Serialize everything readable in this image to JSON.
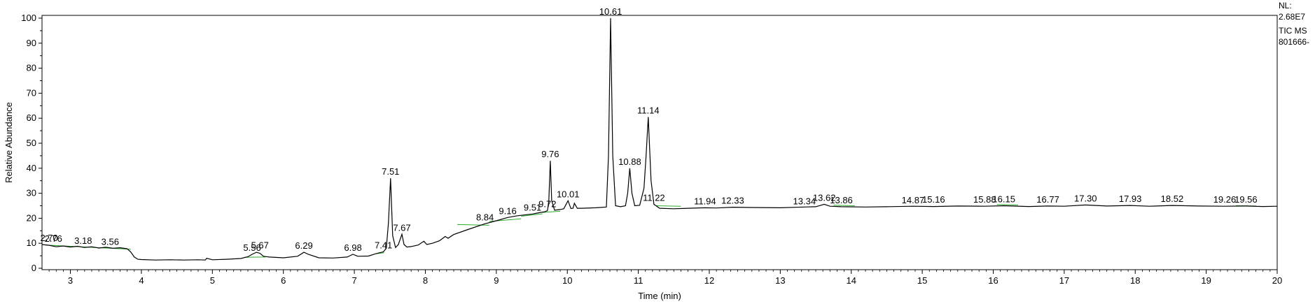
{
  "info": {
    "nl_label": "NL:",
    "nl_value": "2.68E7",
    "scan_type": "TIC  MS",
    "sample": "801666-"
  },
  "chart_data": {
    "type": "line",
    "title": "",
    "xlabel": "Time (min)",
    "ylabel": "Relative Abundance",
    "xlim": [
      2.6,
      20
    ],
    "ylim": [
      0,
      100
    ],
    "xticks": [
      3,
      4,
      5,
      6,
      7,
      8,
      9,
      10,
      11,
      12,
      13,
      14,
      15,
      16,
      17,
      18,
      19,
      20
    ],
    "yticks": [
      0,
      10,
      20,
      30,
      40,
      50,
      60,
      70,
      80,
      90,
      100
    ],
    "grid": false,
    "legend": "none",
    "colors": {
      "trace": "#000000",
      "baseline": "#2eaa2e",
      "plot_bg": "#ffffff"
    },
    "series": [
      {
        "x": [
          2.6,
          2.7,
          2.8,
          2.9,
          3.0,
          3.1,
          3.2,
          3.3,
          3.4,
          3.5,
          3.6,
          3.7,
          3.8,
          3.85,
          3.9,
          3.95,
          4.0,
          4.2,
          4.4,
          4.6,
          4.8,
          4.9,
          4.92,
          5.0,
          5.2,
          5.4,
          5.5,
          5.56,
          5.62,
          5.67,
          5.72,
          5.8,
          6.0,
          6.2,
          6.29,
          6.35,
          6.5,
          6.7,
          6.9,
          6.98,
          7.05,
          7.2,
          7.3,
          7.41,
          7.45,
          7.48,
          7.51,
          7.54,
          7.58,
          7.62,
          7.67,
          7.7,
          7.74,
          7.8,
          7.9,
          7.98,
          8.02,
          8.1,
          8.2,
          8.28,
          8.32,
          8.4,
          8.6,
          8.84,
          9.0,
          9.16,
          9.3,
          9.51,
          9.6,
          9.68,
          9.72,
          9.74,
          9.76,
          9.78,
          9.82,
          9.9,
          9.95,
          10.01,
          10.05,
          10.08,
          10.1,
          10.14,
          10.2,
          10.4,
          10.55,
          10.58,
          10.61,
          10.64,
          10.68,
          10.75,
          10.82,
          10.85,
          10.88,
          10.91,
          10.95,
          11.02,
          11.08,
          11.11,
          11.14,
          11.18,
          11.22,
          11.3,
          11.5,
          11.7,
          11.94,
          12.1,
          12.33,
          12.6,
          13.0,
          13.34,
          13.5,
          13.62,
          13.7,
          13.86,
          14.2,
          14.5,
          14.87,
          15.16,
          15.5,
          15.88,
          16.15,
          16.5,
          16.77,
          17.0,
          17.3,
          17.6,
          17.93,
          18.2,
          18.52,
          18.9,
          19.26,
          19.56,
          19.8,
          20.0
        ],
        "y": [
          9.5,
          9.2,
          8.6,
          8.9,
          8.5,
          8.8,
          8.3,
          8.6,
          8.1,
          8.4,
          8.0,
          8.2,
          7.8,
          6.5,
          4.5,
          3.6,
          3.5,
          3.3,
          3.4,
          3.3,
          3.4,
          3.3,
          4.0,
          3.4,
          3.6,
          3.9,
          4.6,
          5.6,
          6.4,
          6.0,
          4.8,
          4.5,
          4.2,
          4.8,
          6.4,
          5.6,
          4.2,
          4.1,
          4.5,
          5.6,
          4.8,
          4.9,
          5.8,
          6.6,
          8.0,
          18.0,
          36.0,
          13.0,
          8.3,
          9.5,
          13.6,
          9.5,
          8.5,
          8.7,
          9.3,
          10.8,
          9.5,
          10.0,
          11.0,
          12.7,
          12.0,
          13.5,
          15.5,
          17.8,
          19.0,
          20.3,
          21.0,
          21.7,
          22.2,
          22.6,
          23.0,
          27.0,
          43.0,
          27.0,
          23.2,
          23.5,
          23.8,
          27.0,
          23.9,
          24.0,
          26.0,
          24.0,
          24.0,
          24.2,
          24.5,
          45.0,
          100.0,
          45.0,
          25.0,
          24.6,
          25.0,
          30.0,
          40.0,
          30.0,
          25.0,
          25.2,
          32.0,
          45.0,
          60.5,
          35.0,
          25.6,
          24.0,
          23.8,
          24.0,
          24.2,
          24.1,
          24.4,
          24.3,
          24.2,
          24.5,
          24.6,
          25.6,
          24.8,
          24.6,
          24.5,
          24.6,
          24.8,
          24.7,
          24.9,
          24.8,
          25.0,
          24.7,
          24.9,
          24.8,
          25.3,
          24.9,
          25.1,
          24.8,
          25.1,
          24.9,
          24.8,
          24.9,
          24.7,
          24.8
        ]
      }
    ],
    "peak_labels": [
      {
        "label": "2.70",
        "x": 2.7,
        "y": 9.5
      },
      {
        "label": "2.76",
        "x": 2.76,
        "y": 9.2
      },
      {
        "label": "3.18",
        "x": 3.18,
        "y": 8.4
      },
      {
        "label": "3.56",
        "x": 3.56,
        "y": 8.0
      },
      {
        "label": "5.56",
        "x": 5.56,
        "y": 5.6
      },
      {
        "label": "5.67",
        "x": 5.67,
        "y": 6.6
      },
      {
        "label": "6.29",
        "x": 6.29,
        "y": 6.4
      },
      {
        "label": "6.98",
        "x": 6.98,
        "y": 5.6
      },
      {
        "label": "7.41",
        "x": 7.41,
        "y": 6.6
      },
      {
        "label": "7.51",
        "x": 7.51,
        "y": 36.0
      },
      {
        "label": "7.67",
        "x": 7.67,
        "y": 13.6
      },
      {
        "label": "8.84",
        "x": 8.84,
        "y": 17.8
      },
      {
        "label": "9.16",
        "x": 9.16,
        "y": 20.3
      },
      {
        "label": "9.51",
        "x": 9.51,
        "y": 21.7
      },
      {
        "label": "9.72",
        "x": 9.72,
        "y": 23.0
      },
      {
        "label": "9.76",
        "x": 9.76,
        "y": 43.0
      },
      {
        "label": "10.01",
        "x": 10.01,
        "y": 27.0
      },
      {
        "label": "10.61",
        "x": 10.61,
        "y": 100.0
      },
      {
        "label": "10.88",
        "x": 10.88,
        "y": 40.0
      },
      {
        "label": "11.14",
        "x": 11.14,
        "y": 60.5
      },
      {
        "label": "11.22",
        "x": 11.22,
        "y": 25.6
      },
      {
        "label": "11.94",
        "x": 11.94,
        "y": 24.2
      },
      {
        "label": "12.33",
        "x": 12.33,
        "y": 24.4
      },
      {
        "label": "13.34",
        "x": 13.34,
        "y": 24.2
      },
      {
        "label": "13.62",
        "x": 13.62,
        "y": 25.6
      },
      {
        "label": "13.86",
        "x": 13.86,
        "y": 24.6
      },
      {
        "label": "14.87",
        "x": 14.87,
        "y": 24.6
      },
      {
        "label": "15.16",
        "x": 15.16,
        "y": 24.8
      },
      {
        "label": "15.88",
        "x": 15.88,
        "y": 24.9
      },
      {
        "label": "16.15",
        "x": 16.15,
        "y": 25.0
      },
      {
        "label": "16.77",
        "x": 16.77,
        "y": 24.9
      },
      {
        "label": "17.30",
        "x": 17.3,
        "y": 25.3
      },
      {
        "label": "17.93",
        "x": 17.93,
        "y": 25.1
      },
      {
        "label": "18.52",
        "x": 18.52,
        "y": 25.1
      },
      {
        "label": "19.26",
        "x": 19.26,
        "y": 24.8
      },
      {
        "label": "19.56",
        "x": 19.56,
        "y": 24.9
      }
    ],
    "baselines": [
      {
        "x0": 2.65,
        "y0": 9.3,
        "x1": 3.0,
        "y1": 8.8
      },
      {
        "x0": 3.0,
        "y0": 8.8,
        "x1": 3.85,
        "y1": 7.6
      },
      {
        "x0": 5.45,
        "y0": 4.4,
        "x1": 5.75,
        "y1": 4.5
      },
      {
        "x0": 7.3,
        "y0": 5.8,
        "x1": 7.42,
        "y1": 6.2
      },
      {
        "x0": 8.45,
        "y0": 17.5,
        "x1": 8.9,
        "y1": 17.2
      },
      {
        "x0": 8.9,
        "y0": 18.7,
        "x1": 9.35,
        "y1": 19.8
      },
      {
        "x0": 9.35,
        "y0": 20.8,
        "x1": 9.65,
        "y1": 21.8
      },
      {
        "x0": 9.65,
        "y0": 22.3,
        "x1": 9.9,
        "y1": 22.8
      },
      {
        "x0": 11.25,
        "y0": 25.0,
        "x1": 11.6,
        "y1": 24.8
      },
      {
        "x0": 13.75,
        "y0": 25.2,
        "x1": 14.05,
        "y1": 25.0
      },
      {
        "x0": 16.05,
        "y0": 25.5,
        "x1": 16.35,
        "y1": 25.3
      },
      {
        "x0": 19.42,
        "y0": 25.0,
        "x1": 19.7,
        "y1": 24.9
      }
    ]
  }
}
